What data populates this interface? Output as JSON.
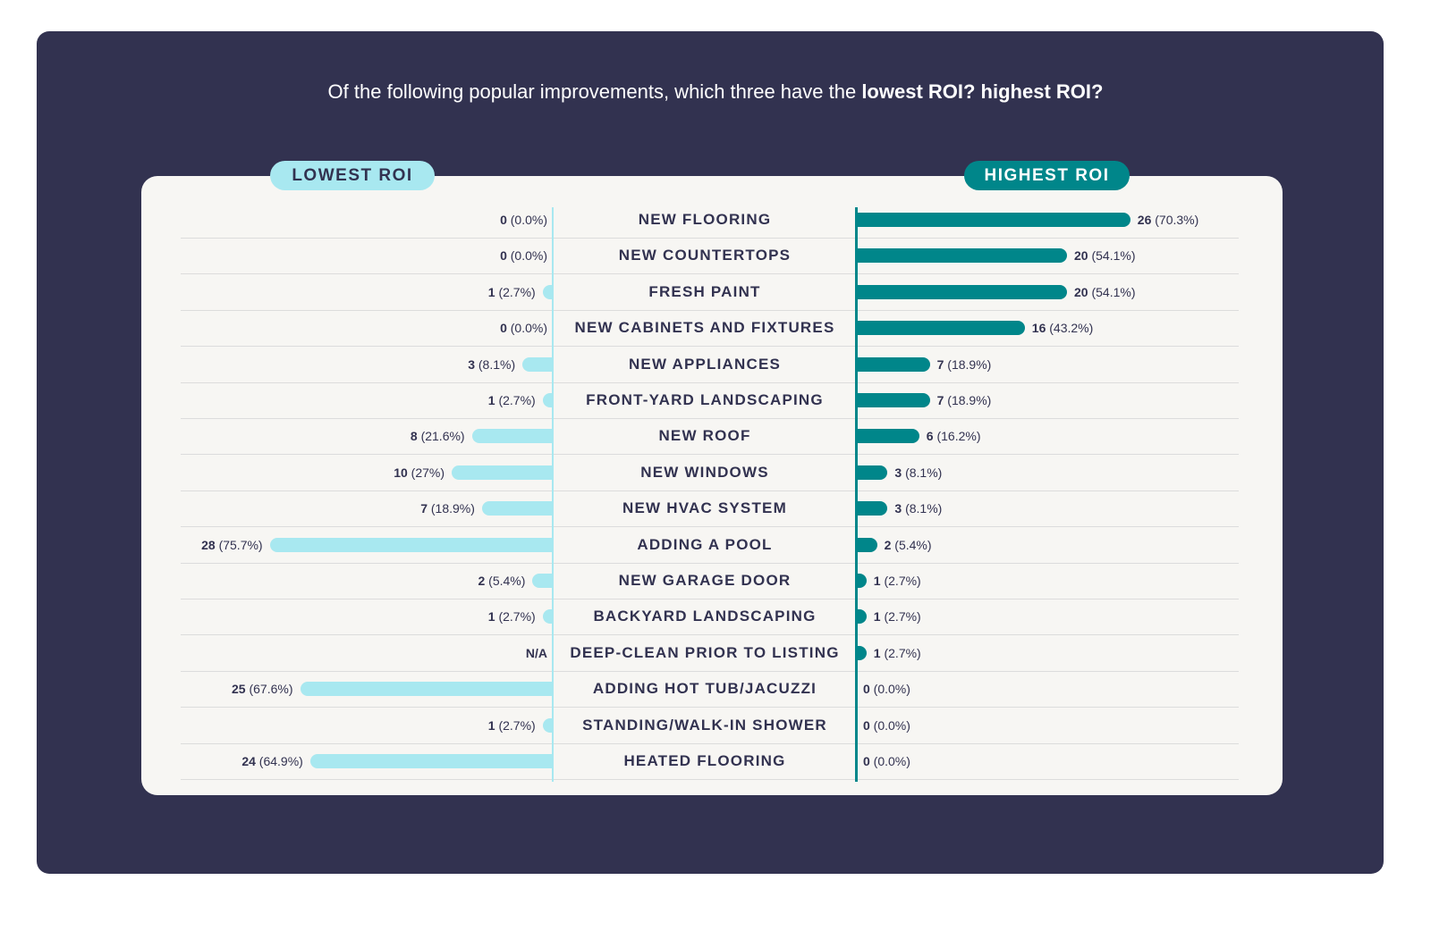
{
  "title": {
    "prefix": "Of the following popular improvements, which three have the ",
    "bold": "lowest ROI? highest ROI?"
  },
  "chart_data": {
    "type": "bar",
    "orientation": "diverging-horizontal",
    "title": "Of the following popular improvements, which three have the lowest ROI? highest ROI?",
    "legend": [
      "LOWEST ROI",
      "HIGHEST ROI"
    ],
    "colors": {
      "lowest": "#a8e8f0",
      "highest": "#00868a"
    },
    "categories": [
      "NEW FLOORING",
      "NEW COUNTERTOPS",
      "FRESH PAINT",
      "NEW CABINETS AND FIXTURES",
      "NEW APPLIANCES",
      "FRONT-YARD LANDSCAPING",
      "NEW ROOF",
      "NEW WINDOWS",
      "NEW HVAC SYSTEM",
      "ADDING A POOL",
      "NEW GARAGE DOOR",
      "BACKYARD LANDSCAPING",
      "DEEP-CLEAN PRIOR TO LISTING",
      "ADDING HOT TUB/JACUZZI",
      "STANDING/WALK-IN SHOWER",
      "HEATED FLOORING"
    ],
    "series": [
      {
        "name": "LOWEST ROI",
        "values": [
          0,
          0,
          1,
          0,
          3,
          1,
          8,
          10,
          7,
          28,
          2,
          1,
          null,
          25,
          1,
          24
        ],
        "labels": [
          "0 (0.0%)",
          "0 (0.0%)",
          "1 (2.7%)",
          "0 (0.0%)",
          "3 (8.1%)",
          "1 (2.7%)",
          "8 (21.6%)",
          "10 (27%)",
          "7 (18.9%)",
          "28 (75.7%)",
          "2 (5.4%)",
          "1 (2.7%)",
          "N/A",
          "25 (67.6%)",
          "1 (2.7%)",
          "24 (64.9%)"
        ]
      },
      {
        "name": "HIGHEST ROI",
        "values": [
          26,
          20,
          20,
          16,
          7,
          7,
          6,
          3,
          3,
          2,
          1,
          1,
          1,
          0,
          0,
          0
        ],
        "labels": [
          "26 (70.3%)",
          "20 (54.1%)",
          "20 (54.1%)",
          "16 (43.2%)",
          "7 (18.9%)",
          "7 (18.9%)",
          "6 (16.2%)",
          "3 (8.1%)",
          "3 (8.1%)",
          "2 (5.4%)",
          "1 (2.7%)",
          "1 (2.7%)",
          "1 (2.7%)",
          "0 (0.0%)",
          "0 (0.0%)",
          "0 (0.0%)"
        ]
      }
    ]
  }
}
